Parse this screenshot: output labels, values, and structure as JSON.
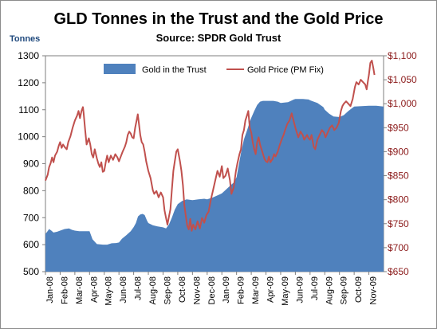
{
  "chart_data": {
    "type": "area-line-combo",
    "title": "GLD Tonnes in the Trust and the Gold Price",
    "subtitle": "Source: SPDR Gold Trust",
    "y_left_label": "Tonnes",
    "y_left_range": [
      500,
      1300
    ],
    "y_left_ticks": [
      "500",
      "600",
      "700",
      "800",
      "900",
      "1000",
      "1100",
      "1200",
      "1300"
    ],
    "y_right_range": [
      650,
      1100
    ],
    "y_right_ticks": [
      "$650",
      "$700",
      "$750",
      "$800",
      "$850",
      "$900",
      "$950",
      "$1,000",
      "$1,050",
      "$1,100"
    ],
    "x_labels": [
      "Jan-08",
      "Feb-08",
      "Mar-08",
      "Apr-08",
      "May-08",
      "Jun-08",
      "Jul-08",
      "Aug-08",
      "Sep-08",
      "Oct-08",
      "Nov-08",
      "Dec-08",
      "Jan-09",
      "Feb-09",
      "Mar-09",
      "Apr-09",
      "May-09",
      "Jun-09",
      "Jul-09",
      "Aug-09",
      "Sep-09",
      "Oct-09",
      "Nov-09"
    ],
    "legend_position": "top-center",
    "colors": {
      "tonnes": "#4f81bd",
      "price": "#c0504d",
      "right_axis_text": "#8b1a1a",
      "left_axis_label": "#1f497d"
    },
    "series": [
      {
        "name": "Gold in the Trust",
        "kind": "area",
        "axis": "left",
        "points": [
          [
            0.0,
            640
          ],
          [
            0.12,
            648
          ],
          [
            0.25,
            658
          ],
          [
            0.4,
            652
          ],
          [
            0.55,
            645
          ],
          [
            0.8,
            648
          ],
          [
            1.0,
            652
          ],
          [
            1.3,
            658
          ],
          [
            1.6,
            660
          ],
          [
            1.8,
            655
          ],
          [
            2.0,
            652
          ],
          [
            2.3,
            650
          ],
          [
            2.6,
            650
          ],
          [
            3.0,
            650
          ],
          [
            3.2,
            620
          ],
          [
            3.5,
            602
          ],
          [
            3.9,
            600
          ],
          [
            4.2,
            600
          ],
          [
            4.5,
            605
          ],
          [
            4.8,
            606
          ],
          [
            5.0,
            608
          ],
          [
            5.2,
            622
          ],
          [
            5.5,
            635
          ],
          [
            5.8,
            650
          ],
          [
            6.0,
            665
          ],
          [
            6.15,
            680
          ],
          [
            6.3,
            705
          ],
          [
            6.45,
            712
          ],
          [
            6.6,
            714
          ],
          [
            6.75,
            710
          ],
          [
            6.9,
            690
          ],
          [
            7.0,
            680
          ],
          [
            7.3,
            672
          ],
          [
            7.6,
            668
          ],
          [
            8.0,
            664
          ],
          [
            8.2,
            660
          ],
          [
            8.4,
            675
          ],
          [
            8.6,
            700
          ],
          [
            8.8,
            730
          ],
          [
            9.0,
            750
          ],
          [
            9.3,
            762
          ],
          [
            9.6,
            768
          ],
          [
            10.0,
            765
          ],
          [
            10.4,
            768
          ],
          [
            10.8,
            770
          ],
          [
            11.0,
            768
          ],
          [
            11.4,
            775
          ],
          [
            11.8,
            785
          ],
          [
            12.0,
            790
          ],
          [
            12.2,
            800
          ],
          [
            12.5,
            815
          ],
          [
            12.8,
            830
          ],
          [
            13.0,
            850
          ],
          [
            13.1,
            880
          ],
          [
            13.3,
            940
          ],
          [
            13.5,
            990
          ],
          [
            13.75,
            1030
          ],
          [
            13.9,
            1055
          ],
          [
            14.0,
            1070
          ],
          [
            14.2,
            1095
          ],
          [
            14.4,
            1118
          ],
          [
            14.6,
            1130
          ],
          [
            14.8,
            1133
          ],
          [
            15.0,
            1133
          ],
          [
            15.5,
            1133
          ],
          [
            15.8,
            1130
          ],
          [
            16.0,
            1125
          ],
          [
            16.5,
            1128
          ],
          [
            16.9,
            1138
          ],
          [
            17.0,
            1140
          ],
          [
            17.5,
            1140
          ],
          [
            17.9,
            1138
          ],
          [
            18.0,
            1135
          ],
          [
            18.5,
            1125
          ],
          [
            18.9,
            1110
          ],
          [
            19.0,
            1100
          ],
          [
            19.3,
            1085
          ],
          [
            19.6,
            1075
          ],
          [
            20.0,
            1073
          ],
          [
            20.3,
            1080
          ],
          [
            20.6,
            1095
          ],
          [
            21.0,
            1112
          ],
          [
            21.5,
            1113
          ],
          [
            22.0,
            1115
          ],
          [
            22.5,
            1115
          ],
          [
            23.0,
            1112
          ]
        ]
      },
      {
        "name": "Gold Price (PM Fix)",
        "kind": "line",
        "axis": "right",
        "points": [
          [
            0.0,
            840
          ],
          [
            0.15,
            852
          ],
          [
            0.25,
            868
          ],
          [
            0.35,
            876
          ],
          [
            0.45,
            888
          ],
          [
            0.55,
            878
          ],
          [
            0.65,
            892
          ],
          [
            0.8,
            900
          ],
          [
            0.9,
            912
          ],
          [
            1.0,
            920
          ],
          [
            1.1,
            908
          ],
          [
            1.2,
            915
          ],
          [
            1.3,
            910
          ],
          [
            1.45,
            905
          ],
          [
            1.55,
            920
          ],
          [
            1.7,
            932
          ],
          [
            1.85,
            950
          ],
          [
            2.0,
            965
          ],
          [
            2.15,
            975
          ],
          [
            2.25,
            985
          ],
          [
            2.35,
            970
          ],
          [
            2.45,
            985
          ],
          [
            2.55,
            993
          ],
          [
            2.6,
            980
          ],
          [
            2.7,
            945
          ],
          [
            2.8,
            915
          ],
          [
            2.95,
            928
          ],
          [
            3.05,
            915
          ],
          [
            3.15,
            895
          ],
          [
            3.25,
            888
          ],
          [
            3.35,
            905
          ],
          [
            3.5,
            886
          ],
          [
            3.6,
            875
          ],
          [
            3.7,
            868
          ],
          [
            3.8,
            878
          ],
          [
            3.9,
            858
          ],
          [
            4.0,
            860
          ],
          [
            4.1,
            878
          ],
          [
            4.2,
            892
          ],
          [
            4.3,
            878
          ],
          [
            4.45,
            892
          ],
          [
            4.6,
            883
          ],
          [
            4.75,
            895
          ],
          [
            4.9,
            888
          ],
          [
            5.0,
            880
          ],
          [
            5.1,
            888
          ],
          [
            5.25,
            900
          ],
          [
            5.4,
            910
          ],
          [
            5.5,
            920
          ],
          [
            5.6,
            935
          ],
          [
            5.7,
            942
          ],
          [
            5.8,
            938
          ],
          [
            5.9,
            930
          ],
          [
            6.0,
            928
          ],
          [
            6.1,
            950
          ],
          [
            6.2,
            965
          ],
          [
            6.28,
            978
          ],
          [
            6.35,
            960
          ],
          [
            6.45,
            935
          ],
          [
            6.55,
            920
          ],
          [
            6.65,
            915
          ],
          [
            6.75,
            900
          ],
          [
            6.85,
            880
          ],
          [
            7.0,
            860
          ],
          [
            7.15,
            845
          ],
          [
            7.3,
            820
          ],
          [
            7.4,
            812
          ],
          [
            7.55,
            818
          ],
          [
            7.7,
            805
          ],
          [
            7.85,
            815
          ],
          [
            8.0,
            805
          ],
          [
            8.1,
            778
          ],
          [
            8.2,
            762
          ],
          [
            8.3,
            748
          ],
          [
            8.4,
            765
          ],
          [
            8.5,
            780
          ],
          [
            8.6,
            820
          ],
          [
            8.7,
            860
          ],
          [
            8.8,
            880
          ],
          [
            8.9,
            900
          ],
          [
            9.0,
            905
          ],
          [
            9.15,
            880
          ],
          [
            9.25,
            860
          ],
          [
            9.35,
            830
          ],
          [
            9.45,
            788
          ],
          [
            9.55,
            765
          ],
          [
            9.65,
            745
          ],
          [
            9.75,
            738
          ],
          [
            9.85,
            760
          ],
          [
            9.95,
            735
          ],
          [
            10.05,
            748
          ],
          [
            10.2,
            738
          ],
          [
            10.35,
            755
          ],
          [
            10.5,
            740
          ],
          [
            10.65,
            762
          ],
          [
            10.8,
            752
          ],
          [
            10.95,
            768
          ],
          [
            11.1,
            775
          ],
          [
            11.25,
            800
          ],
          [
            11.4,
            820
          ],
          [
            11.55,
            840
          ],
          [
            11.7,
            860
          ],
          [
            11.85,
            848
          ],
          [
            12.0,
            870
          ],
          [
            12.1,
            845
          ],
          [
            12.25,
            850
          ],
          [
            12.4,
            865
          ],
          [
            12.55,
            840
          ],
          [
            12.65,
            812
          ],
          [
            12.8,
            825
          ],
          [
            12.95,
            858
          ],
          [
            13.05,
            875
          ],
          [
            13.2,
            895
          ],
          [
            13.3,
            905
          ],
          [
            13.4,
            935
          ],
          [
            13.5,
            945
          ],
          [
            13.6,
            965
          ],
          [
            13.7,
            975
          ],
          [
            13.8,
            985
          ],
          [
            13.9,
            950
          ],
          [
            14.0,
            940
          ],
          [
            14.1,
            920
          ],
          [
            14.2,
            905
          ],
          [
            14.3,
            895
          ],
          [
            14.4,
            920
          ],
          [
            14.5,
            930
          ],
          [
            14.6,
            915
          ],
          [
            14.75,
            900
          ],
          [
            14.9,
            885
          ],
          [
            15.0,
            880
          ],
          [
            15.1,
            878
          ],
          [
            15.2,
            890
          ],
          [
            15.3,
            878
          ],
          [
            15.45,
            885
          ],
          [
            15.55,
            895
          ],
          [
            15.65,
            890
          ],
          [
            15.8,
            900
          ],
          [
            15.95,
            915
          ],
          [
            16.1,
            928
          ],
          [
            16.2,
            935
          ],
          [
            16.3,
            945
          ],
          [
            16.45,
            958
          ],
          [
            16.6,
            965
          ],
          [
            16.75,
            980
          ],
          [
            16.85,
            968
          ],
          [
            17.0,
            950
          ],
          [
            17.1,
            940
          ],
          [
            17.2,
            930
          ],
          [
            17.35,
            942
          ],
          [
            17.5,
            935
          ],
          [
            17.6,
            925
          ],
          [
            17.7,
            930
          ],
          [
            17.8,
            935
          ],
          [
            17.9,
            928
          ],
          [
            18.0,
            925
          ],
          [
            18.1,
            935
          ],
          [
            18.25,
            910
          ],
          [
            18.35,
            905
          ],
          [
            18.5,
            925
          ],
          [
            18.65,
            935
          ],
          [
            18.8,
            945
          ],
          [
            18.95,
            940
          ],
          [
            19.05,
            930
          ],
          [
            19.2,
            940
          ],
          [
            19.35,
            950
          ],
          [
            19.5,
            955
          ],
          [
            19.65,
            945
          ],
          [
            19.8,
            950
          ],
          [
            19.95,
            960
          ],
          [
            20.1,
            985
          ],
          [
            20.2,
            995
          ],
          [
            20.3,
            1000
          ],
          [
            20.45,
            1005
          ],
          [
            20.6,
            1000
          ],
          [
            20.75,
            995
          ],
          [
            20.9,
            1010
          ],
          [
            21.05,
            1035
          ],
          [
            21.15,
            1045
          ],
          [
            21.3,
            1040
          ],
          [
            21.45,
            1050
          ],
          [
            21.6,
            1045
          ],
          [
            21.75,
            1040
          ],
          [
            21.85,
            1030
          ],
          [
            21.95,
            1050
          ],
          [
            22.0,
            1060
          ],
          [
            22.1,
            1085
          ],
          [
            22.2,
            1090
          ],
          [
            22.3,
            1075
          ],
          [
            22.38,
            1060
          ]
        ]
      }
    ]
  }
}
